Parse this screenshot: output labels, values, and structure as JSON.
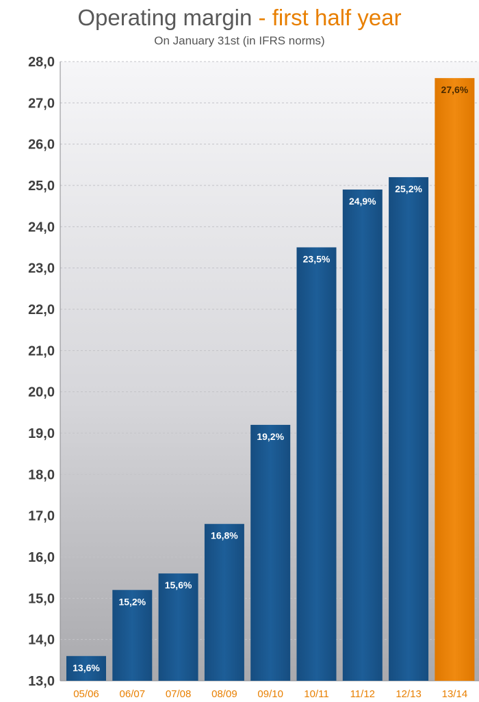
{
  "title": {
    "main": "Operating margin",
    "accent": "- first half year"
  },
  "subtitle": "On January 31st (in IFRS norms)",
  "colors": {
    "bar": "#1a5a92",
    "highlight": "#e87f00",
    "axis_text": "#3f3f3f",
    "x_tick": "#e87f00"
  },
  "chart_data": {
    "type": "bar",
    "title": "Operating margin - first half year",
    "subtitle": "On January 31st (in IFRS norms)",
    "categories": [
      "05/06",
      "06/07",
      "07/08",
      "08/09",
      "09/10",
      "10/11",
      "11/12",
      "12/13",
      "13/14"
    ],
    "values": [
      13.6,
      15.2,
      15.6,
      16.8,
      19.2,
      23.5,
      24.9,
      25.2,
      27.6
    ],
    "data_labels": [
      "13,6%",
      "15,2%",
      "15,6%",
      "16,8%",
      "19,2%",
      "23,5%",
      "24,9%",
      "25,2%",
      "27,6%"
    ],
    "highlight_index": 8,
    "ylim": [
      13,
      28
    ],
    "yticks": [
      "13,0",
      "14,0",
      "15,0",
      "16,0",
      "17,0",
      "18,0",
      "19,0",
      "20,0",
      "21,0",
      "22,0",
      "23,0",
      "24,0",
      "25,0",
      "26,0",
      "27,0",
      "28,0"
    ],
    "grid": true,
    "xlabel": "",
    "ylabel": ""
  }
}
